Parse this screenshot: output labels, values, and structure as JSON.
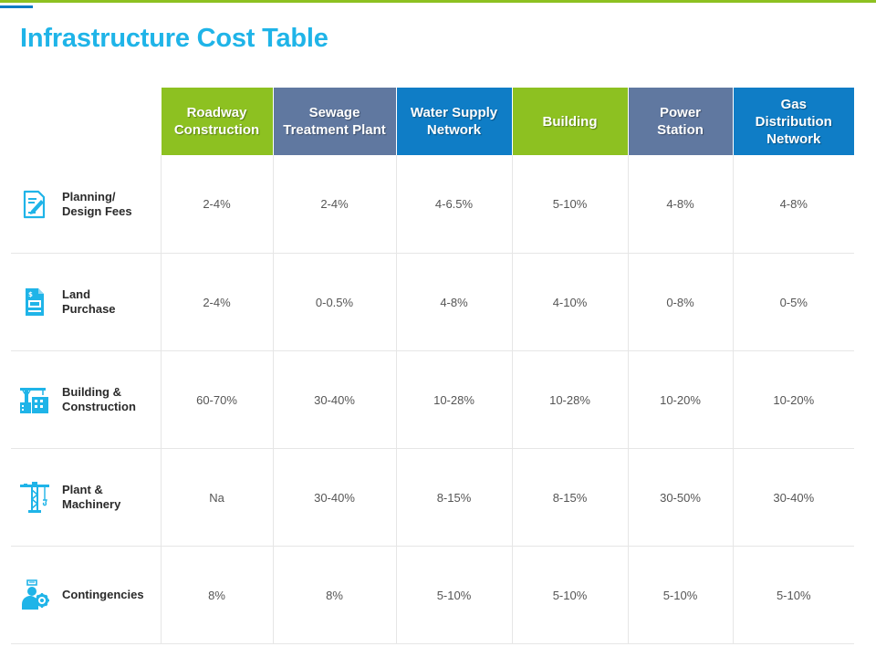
{
  "title": "Infrastructure Cost Table",
  "colors": {
    "title": "#1fb4e8",
    "top_line": "#8dc121",
    "top_accent": "#0f7dc6",
    "icon": "#1fb4e8"
  },
  "columns": [
    {
      "label": "Roadway\nConstruction",
      "color": "#8dc121"
    },
    {
      "label": "Sewage\nTreatment Plant",
      "color": "#6078a0"
    },
    {
      "label": "Water Supply\nNetwork",
      "color": "#0f7dc6"
    },
    {
      "label": "Building",
      "color": "#8dc121"
    },
    {
      "label": "Power\nStation",
      "color": "#6078a0"
    },
    {
      "label": "Gas\nDistribution\nNetwork",
      "color": "#0f7dc6"
    }
  ],
  "rows": [
    {
      "label": "Planning/\nDesign Fees",
      "icon": "document-pen-icon",
      "values": [
        "2-4%",
        "2-4%",
        "4-6.5%",
        "5-10%",
        "4-8%",
        "4-8%"
      ]
    },
    {
      "label": "Land\nPurchase",
      "icon": "invoice-icon",
      "values": [
        "2-4%",
        "0-0.5%",
        "4-8%",
        "4-10%",
        "0-8%",
        "0-5%"
      ]
    },
    {
      "label": "Building &\nConstruction",
      "icon": "buildings-crane-icon",
      "values": [
        "60-70%",
        "30-40%",
        "10-28%",
        "10-28%",
        "10-20%",
        "10-20%"
      ]
    },
    {
      "label": "Plant &\nMachinery",
      "icon": "tower-crane-icon",
      "values": [
        "Na",
        "30-40%",
        "8-15%",
        "8-15%",
        "30-50%",
        "30-40%"
      ]
    },
    {
      "label": "Contingencies",
      "icon": "person-gear-icon",
      "values": [
        "8%",
        "8%",
        "5-10%",
        "5-10%",
        "5-10%",
        "5-10%"
      ]
    }
  ]
}
